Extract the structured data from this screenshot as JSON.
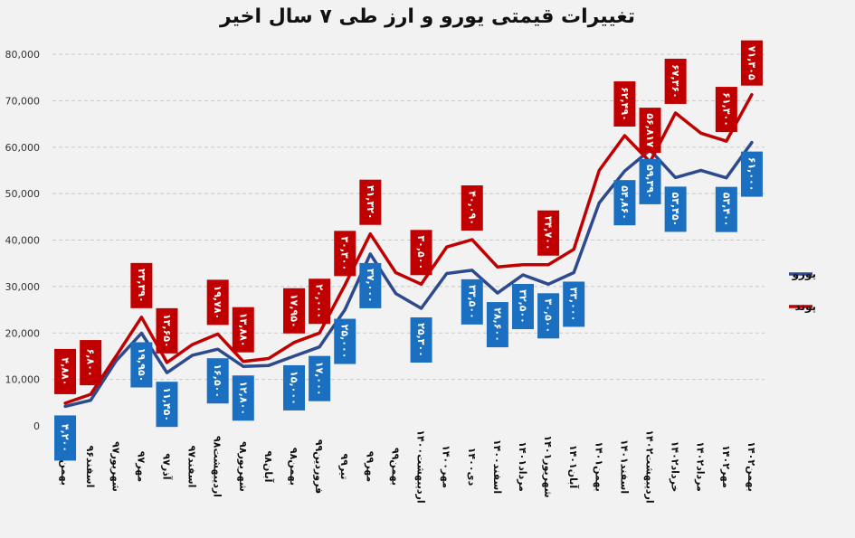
{
  "chart_data": {
    "type": "line",
    "title": "تغییرات قیمتی یورو و ارز طی ۷ سال اخیر",
    "xlabel": "",
    "ylabel": "",
    "ylim": [
      0,
      80000
    ],
    "yticks": [
      "0",
      "10,000",
      "20,000",
      "30,000",
      "40,000",
      "50,000",
      "60,000",
      "70,000",
      "80,000"
    ],
    "yticks_values": [
      0,
      10000,
      20000,
      30000,
      40000,
      50000,
      60000,
      70000,
      80000
    ],
    "grid": "horizontal-dashed",
    "legend": "right",
    "categories": [
      "بهمن۹۵",
      "اسفند۹۶",
      "شهریور۹۷",
      "مهر۹۷",
      "آذر۹۷",
      "اسفند۹۷",
      "اردیبهشت۹۸",
      "شهریور۹۸",
      "آبان۹۸",
      "بهمن۹۸",
      "فروردین۹۹",
      "تیر۹۹",
      "مهر۹۹",
      "بهمن۹۹",
      "اردیبهشت۱۴۰۰",
      "مهر۱۴۰۰",
      "دی۱۴۰۰",
      "اسفند۱۴۰۰",
      "مرداد۱۴۰۱",
      "شهریور۱۴۰۱",
      "آبان۱۴۰۱",
      "بهمن۱۴۰۱",
      "اسفند۱۴۰۱",
      "اردیبهشت۱۴۰۲",
      "خرداد۱۴۰۲",
      "مرداد۱۴۰۲",
      "مهر۱۴۰۲",
      "بهمن۱۴۰۲"
    ],
    "series": [
      {
        "name": "یورو",
        "color": "#2e4a8f",
        "label_color": "#1a6fc0",
        "values": [
          4200,
          5500,
          14000,
          19950,
          11450,
          15200,
          16500,
          12800,
          13000,
          15000,
          17000,
          25000,
          37000,
          28500,
          25300,
          32800,
          33500,
          28600,
          32500,
          30500,
          33000,
          48000,
          54860,
          59390,
          53450,
          55000,
          53400,
          61000
        ],
        "labels": [
          "۴,۲۰۰",
          "",
          "",
          "۱۹,۹۵۰",
          "۱۱,۴۵۰",
          "",
          "۱۶,۵۰۰",
          "۱۲,۸۰۰",
          "",
          "۱۵,۰۰۰",
          "۱۷,۰۰۰",
          "۲۵,۰۰۰",
          "۳۷,۰۰۰",
          "",
          "۲۵,۳۰۰",
          "",
          "۳۳,۵۰۰",
          "۲۸,۶۰۰",
          "۳۲,۵۰۰",
          "۳۰,۵۰۰",
          "۳۳,۰۰۰",
          "",
          "۵۴,۸۶۰",
          "۵۹,۳۹۰",
          "۵۳,۴۵۰",
          "",
          "۵۳,۴۰۰",
          "۶۱,۰۰۰"
        ]
      },
      {
        "name": "پوند",
        "color": "#c00000",
        "label_color": "#c00000",
        "values": [
          4880,
          6800,
          15000,
          23390,
          13650,
          17500,
          19780,
          13880,
          14500,
          17950,
          20000,
          30300,
          41320,
          33000,
          30500,
          38500,
          40090,
          34200,
          34700,
          34700,
          38000,
          55000,
          62490,
          56817,
          67360,
          63000,
          61300,
          71305
        ],
        "labels": [
          "۴,۸۸۰",
          "۶,۸۰۰",
          "",
          "۲۳,۳۹۰",
          "۱۳,۶۵۰",
          "",
          "۱۹,۷۸۰",
          "۱۳,۸۸۰",
          "",
          "۱۷,۹۵۰",
          "۲۰,۰۰۰",
          "۳۰,۳۰۰",
          "۴۱,۳۲۰",
          "",
          "۳۰,۵۰۰",
          "",
          "۴۰,۰۹۰",
          "",
          "",
          "۳۴,۷۰۰",
          "",
          "",
          "۶۲,۴۹۰",
          "۵۶,۸۱۷",
          "۶۷,۳۶۰",
          "",
          "۶۱,۳۰۰",
          "۷۱,۳۰۵"
        ]
      }
    ]
  }
}
